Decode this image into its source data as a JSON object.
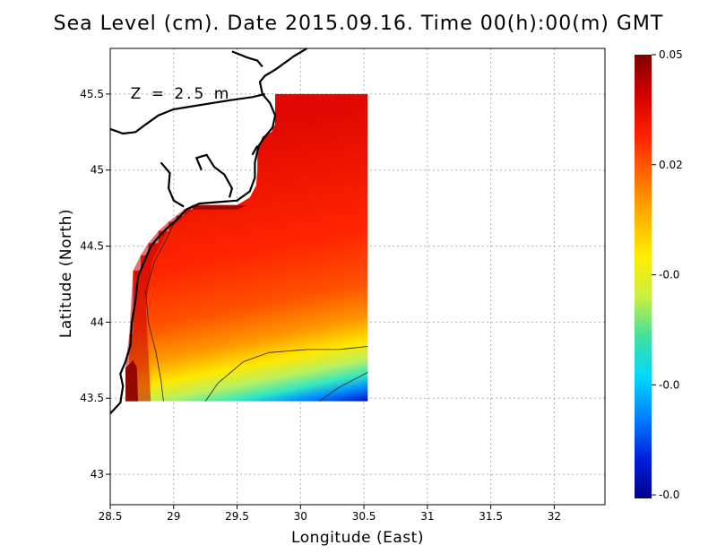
{
  "chart_data": {
    "type": "heatmap",
    "title": "Sea Level (cm). Date 2015.09.16. Time 00(h):00(m) GMT",
    "xlabel": "Longitude (East)",
    "ylabel": "Latitude (North)",
    "annotation": "Z = 2.5 m",
    "xlim": [
      28.5,
      32.4
    ],
    "ylim": [
      42.8,
      45.8
    ],
    "x_ticks": [
      28.5,
      29,
      29.5,
      30,
      30.5,
      31,
      31.5,
      32
    ],
    "x_tick_labels": [
      "28.5",
      "29",
      "29.5",
      "30",
      "30.5",
      "31",
      "31.5",
      "32"
    ],
    "y_ticks": [
      43,
      43.5,
      44,
      44.5,
      45,
      45.5
    ],
    "y_tick_labels": [
      "43",
      "43.5",
      "44",
      "44.5",
      "45",
      "45.5"
    ],
    "grid": true,
    "data_extent": {
      "lon": [
        28.62,
        30.53
      ],
      "lat": [
        43.48,
        45.5
      ]
    },
    "colorbar": {
      "labels": [
        "0.05",
        "0.02",
        "-0.0",
        "-0.0",
        "-0.0"
      ],
      "colors": [
        "#7f0000",
        "#d40000",
        "#ff2000",
        "#ff6a00",
        "#ffb000",
        "#ffee00",
        "#c8f040",
        "#40e0a0",
        "#00d8ff",
        "#0080ff",
        "#0020e0",
        "#00008c"
      ]
    },
    "field_samples": [
      {
        "lon": 28.75,
        "lat": 43.55,
        "value": 0.05
      },
      {
        "lon": 29.0,
        "lat": 44.2,
        "value": 0.035
      },
      {
        "lon": 29.5,
        "lat": 44.5,
        "value": 0.03
      },
      {
        "lon": 30.3,
        "lat": 45.2,
        "value": 0.025
      },
      {
        "lon": 30.2,
        "lat": 44.05,
        "value": 0.015
      },
      {
        "lon": 29.8,
        "lat": 43.85,
        "value": 0.005
      },
      {
        "lon": 30.0,
        "lat": 43.6,
        "value": -0.02
      },
      {
        "lon": 30.5,
        "lat": 43.5,
        "value": -0.045
      }
    ]
  }
}
